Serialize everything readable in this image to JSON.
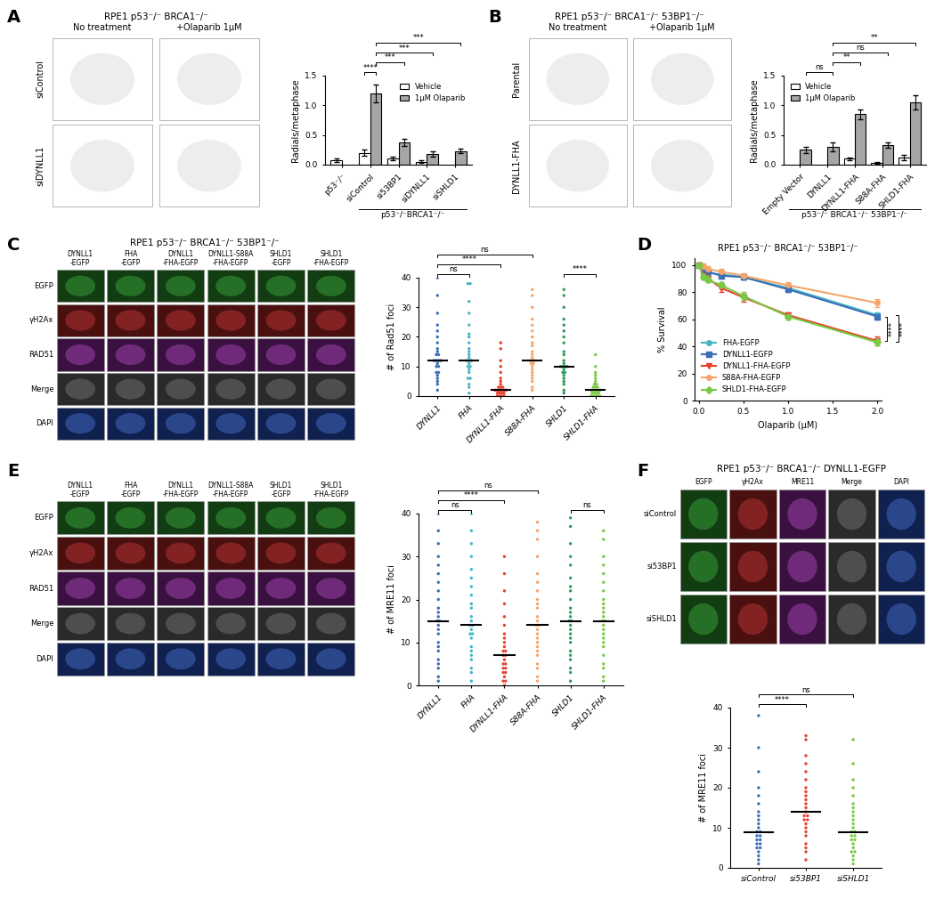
{
  "panel_labels": [
    "A",
    "B",
    "C",
    "D",
    "E",
    "F"
  ],
  "image_panels": [
    {
      "title": "RPE1 p53⁻/⁻ BRCA1⁻/⁻",
      "columns": [
        "No treatment",
        "+Olaparib 1μM"
      ],
      "rows": [
        "siControl",
        "siDYNLL1"
      ]
    },
    {
      "title": "RPE1 p53⁻/⁻ BRCA1⁻/⁻ 53BP1⁻/⁻",
      "columns": [
        "No treatment",
        "+Olaparib 1μM"
      ],
      "rows": [
        "Parental",
        "DYNLL1-FHA"
      ]
    },
    {
      "title": "RPE1 p53⁻/⁻ BRCA1⁻/⁻ 53BP1⁻/⁻",
      "columns": [
        "DYNLL1\n-EGFP",
        "FHA\n-EGFP",
        "DYNLL1\n-FHA-EGFP",
        "DYNLL1-S88A\n-FHA-EGFP",
        "SHLD1\n-EGFP",
        "SHLD1\n-FHA-EGFP"
      ],
      "rows": [
        "EGFP",
        "γH2Ax",
        "RAD51",
        "Merge",
        "DAPI"
      ]
    },
    {
      "columns": [
        "DYNLL1\n-EGFP",
        "FHA\n-EGFP",
        "DYNLL1\n-FHA-EGFP",
        "DYNLL1-S88A\n-FHA-EGFP",
        "SHLD1\n-EGFP",
        "SHLD1\n-FHA-EGFP"
      ],
      "rows": [
        "EGFP",
        "γH2Ax",
        "RAD51",
        "Merge",
        "DAPI"
      ]
    },
    {
      "title": "RPE1 p53⁻/⁻ BRCA1⁻/⁻ DYNLL1-EGFP",
      "columns": [
        "EGFP",
        "γH2Ax",
        "MRE11",
        "Merge",
        "DAPI"
      ],
      "rows": [
        "siControl",
        "si53BP1",
        "siSHLD1"
      ]
    }
  ],
  "chart_data": [
    {
      "type": "bar",
      "ylabel": "Radials/metaphase",
      "categories": [
        "p53⁻/⁻",
        "siControl",
        "si53BP1",
        "siDYNLL1",
        "siSHLD1"
      ],
      "group_label": "p53⁻/⁻BRCA1⁻/⁻",
      "group_categories": [
        "siControl",
        "si53BP1",
        "siDYNLL1",
        "siSHLD1"
      ],
      "series": [
        {
          "name": "Vehicle",
          "color": "#ffffff",
          "values": [
            0.07,
            0.2,
            0.1,
            0.05,
            null
          ],
          "errors": [
            0.03,
            0.05,
            0.03,
            0.02,
            null
          ]
        },
        {
          "name": "1μM Olaparib",
          "color": "#a6a6a6",
          "values": [
            null,
            1.2,
            0.38,
            0.18,
            0.23
          ],
          "errors": [
            null,
            0.15,
            0.06,
            0.05,
            0.04
          ]
        }
      ],
      "ylim": [
        0,
        1.5
      ],
      "yticks": [
        {
          "value": 0,
          "label": "0.0"
        },
        {
          "value": 0.5,
          "label": "0.5"
        },
        {
          "value": 1.0,
          "label": "1.0"
        },
        {
          "value": 1.5,
          "label": "1.5"
        }
      ],
      "legend": "upper right",
      "comparisons": [
        {
          "a": [
            "siControl",
            "Vehicle"
          ],
          "b": [
            "siControl",
            "1μM Olaparib"
          ],
          "label": "****"
        },
        {
          "a": [
            "siControl",
            "1μM Olaparib"
          ],
          "b": [
            "si53BP1",
            "1μM Olaparib"
          ],
          "label": "***"
        },
        {
          "a": [
            "siControl",
            "1μM Olaparib"
          ],
          "b": [
            "siDYNLL1",
            "1μM Olaparib"
          ],
          "label": "***"
        },
        {
          "a": [
            "siControl",
            "1μM Olaparib"
          ],
          "b": [
            "siSHLD1",
            "1μM Olaparib"
          ],
          "label": "***"
        }
      ]
    },
    {
      "type": "bar",
      "ylabel": "Radials/metaphase",
      "categories": [
        "Empty Vector",
        "DYNLL1",
        "DYNLL1-FHA",
        "S88A-FHA",
        "SHLD1-FHA"
      ],
      "group_label": "p53⁻/⁻ BRCA1⁻/⁻ 53BP1⁻/⁻",
      "group_categories": [
        "Empty Vector",
        "DYNLL1",
        "DYNLL1-FHA",
        "S88A-FHA",
        "SHLD1-FHA"
      ],
      "series": [
        {
          "name": "Vehicle",
          "color": "#ffffff",
          "values": [
            null,
            null,
            0.1,
            0.03,
            0.12
          ],
          "errors": [
            null,
            null,
            0.02,
            0.02,
            0.04
          ]
        },
        {
          "name": "1μM Olaparib",
          "color": "#a6a6a6",
          "values": [
            0.25,
            0.3,
            0.85,
            0.33,
            1.05
          ],
          "errors": [
            0.05,
            0.07,
            0.08,
            0.05,
            0.12
          ]
        }
      ],
      "ylim": [
        0,
        1.5
      ],
      "yticks": [
        {
          "value": 0,
          "label": "0.0"
        },
        {
          "value": 0.5,
          "label": "0.5"
        },
        {
          "value": 1.0,
          "label": "1.0"
        },
        {
          "value": 1.5,
          "label": "1.5"
        }
      ],
      "legend": "upper left",
      "comparisons": [
        {
          "a": [
            "Empty Vector",
            "1μM Olaparib"
          ],
          "b": [
            "DYNLL1",
            "1μM Olaparib"
          ],
          "label": "ns"
        },
        {
          "a": [
            "DYNLL1",
            "1μM Olaparib"
          ],
          "b": [
            "DYNLL1-FHA",
            "1μM Olaparib"
          ],
          "label": "**"
        },
        {
          "a": [
            "DYNLL1",
            "1μM Olaparib"
          ],
          "b": [
            "S88A-FHA",
            "1μM Olaparib"
          ],
          "label": "ns"
        },
        {
          "a": [
            "DYNLL1",
            "1μM Olaparib"
          ],
          "b": [
            "SHLD1-FHA",
            "1μM Olaparib"
          ],
          "label": "**"
        }
      ]
    },
    {
      "type": "scatter",
      "ylabel": "# of Rad51 foci",
      "categories": [
        "DYNLL1",
        "FHA",
        "DYNLL1-FHA",
        "S88A-FHA",
        "SHLD1",
        "SHLD1-FHA"
      ],
      "colors": [
        "#3b6fb6",
        "#45b5c4",
        "#e8402e",
        "#f5a46a",
        "#2e9c5a",
        "#7ac943"
      ],
      "values": [
        [
          2,
          4,
          5,
          6,
          7,
          8,
          8,
          10,
          10,
          11,
          12,
          12,
          12,
          12,
          14,
          14,
          15,
          16,
          18,
          20,
          22,
          24,
          28,
          34,
          40
        ],
        [
          1,
          3,
          4,
          6,
          6,
          8,
          9,
          10,
          10,
          11,
          12,
          12,
          12,
          13,
          14,
          15,
          16,
          18,
          20,
          21,
          24,
          28,
          32,
          38,
          38
        ],
        [
          0,
          0,
          0,
          0,
          1,
          1,
          1,
          1,
          2,
          2,
          2,
          2,
          2,
          2,
          3,
          3,
          3,
          4,
          5,
          6,
          8,
          10,
          12,
          16,
          18
        ],
        [
          2,
          3,
          5,
          6,
          7,
          8,
          9,
          10,
          11,
          11,
          12,
          12,
          12,
          13,
          14,
          15,
          17,
          18,
          20,
          22,
          24,
          26,
          30,
          34,
          36
        ],
        [
          1,
          2,
          4,
          5,
          6,
          7,
          8,
          8,
          9,
          10,
          10,
          10,
          10,
          11,
          12,
          14,
          15,
          18,
          20,
          22,
          24,
          26,
          30,
          34,
          36
        ],
        [
          0,
          0,
          0,
          0,
          0,
          1,
          1,
          1,
          1,
          2,
          2,
          2,
          2,
          2,
          3,
          3,
          3,
          4,
          4,
          5,
          6,
          7,
          8,
          10,
          14
        ]
      ],
      "medians": [
        12,
        12,
        2,
        12,
        10,
        2
      ],
      "ylim": [
        0,
        40
      ],
      "yticks": [
        0,
        10,
        20,
        30,
        40
      ],
      "comparisons": [
        {
          "a": "DYNLL1",
          "b": "FHA",
          "label": "ns"
        },
        {
          "a": "DYNLL1",
          "b": "DYNLL1-FHA",
          "label": "****"
        },
        {
          "a": "DYNLL1",
          "b": "S88A-FHA",
          "label": "ns"
        },
        {
          "a": "SHLD1",
          "b": "SHLD1-FHA",
          "label": "****"
        }
      ]
    },
    {
      "type": "line",
      "title": "RPE1 p53⁻/⁻ BRCA1⁻/⁻ 53BP1⁻/⁻",
      "xlabel": "Olaparib (μM)",
      "ylabel": "% Survival",
      "x": [
        0,
        0.05,
        0.1,
        0.25,
        0.5,
        1.0,
        2.0
      ],
      "series": [
        {
          "name": "FHA-EGFP",
          "color": "#45b5c4",
          "marker": "circle",
          "values": [
            100,
            96,
            94,
            93,
            91,
            83,
            63
          ],
          "errors": [
            1,
            2,
            2,
            2,
            2,
            2,
            2
          ]
        },
        {
          "name": "DYNLL1-EGFP",
          "color": "#3b6fb6",
          "marker": "square",
          "values": [
            100,
            96,
            95,
            92,
            91,
            82,
            62
          ],
          "errors": [
            1,
            2,
            2,
            2,
            2,
            2,
            2
          ]
        },
        {
          "name": "DYNLL1-FHA-EGFP",
          "color": "#e8402e",
          "marker": "triangle_down",
          "values": [
            100,
            92,
            90,
            83,
            76,
            63,
            44
          ],
          "errors": [
            1,
            2,
            2,
            3,
            3,
            2,
            3
          ]
        },
        {
          "name": "S88A-FHA-EGFP",
          "color": "#f5a46a",
          "marker": "circle",
          "values": [
            100,
            99,
            97,
            95,
            92,
            85,
            72
          ],
          "errors": [
            1,
            2,
            2,
            2,
            2,
            2,
            3
          ]
        },
        {
          "name": "SHLD1-FHA-EGFP",
          "color": "#7ac943",
          "marker": "diamond",
          "values": [
            100,
            91,
            89,
            85,
            77,
            62,
            43
          ],
          "errors": [
            1,
            2,
            2,
            2,
            3,
            2,
            2
          ]
        }
      ],
      "xlim": [
        -0.05,
        2.05
      ],
      "xticks": [
        {
          "value": 0,
          "label": "0.0"
        },
        {
          "value": 0.5,
          "label": "0.5"
        },
        {
          "value": 1.0,
          "label": "1.0"
        },
        {
          "value": 1.5,
          "label": "1.5"
        },
        {
          "value": 2.0,
          "label": "2.0"
        }
      ],
      "ylim": [
        0,
        105
      ],
      "yticks": [
        0,
        20,
        40,
        60,
        80,
        100
      ],
      "legend": "lower left",
      "comparisons": [
        {
          "a": "DYNLL1-FHA-EGFP",
          "b": "DYNLL1-EGFP",
          "label": "****"
        },
        {
          "a": "SHLD1-FHA-EGFP",
          "b": "FHA-EGFP",
          "label": "****"
        }
      ]
    },
    {
      "type": "scatter",
      "ylabel": "# of MRE11 foci",
      "categories": [
        "DYNLL1",
        "FHA",
        "DYNLL1-FHA",
        "S88A-FHA",
        "SHLD1",
        "SHLD1-FHA"
      ],
      "colors": [
        "#3b6fb6",
        "#45b5c4",
        "#e8402e",
        "#f5a46a",
        "#2e9c5a",
        "#7ac943"
      ],
      "values": [
        [
          1,
          2,
          4,
          5,
          6,
          8,
          9,
          10,
          12,
          13,
          14,
          15,
          15,
          16,
          17,
          18,
          20,
          22,
          24,
          26,
          28,
          30,
          33,
          36,
          40
        ],
        [
          1,
          3,
          4,
          6,
          7,
          8,
          9,
          11,
          12,
          12,
          13,
          14,
          14,
          15,
          16,
          18,
          19,
          21,
          23,
          25,
          27,
          30,
          33,
          36,
          40
        ],
        [
          0,
          1,
          1,
          2,
          3,
          3,
          4,
          4,
          5,
          5,
          6,
          7,
          7,
          8,
          8,
          9,
          10,
          11,
          12,
          14,
          16,
          19,
          22,
          26,
          30
        ],
        [
          1,
          2,
          4,
          5,
          7,
          8,
          9,
          10,
          11,
          12,
          13,
          14,
          14,
          15,
          16,
          18,
          19,
          20,
          22,
          24,
          26,
          30,
          34,
          36,
          38
        ],
        [
          1,
          3,
          4,
          6,
          7,
          8,
          10,
          11,
          12,
          13,
          14,
          15,
          15,
          16,
          17,
          18,
          20,
          22,
          23,
          25,
          28,
          30,
          33,
          37,
          39
        ],
        [
          1,
          2,
          4,
          5,
          7,
          9,
          10,
          11,
          12,
          13,
          14,
          15,
          15,
          16,
          17,
          18,
          19,
          20,
          22,
          24,
          26,
          28,
          30,
          34,
          36
        ]
      ],
      "medians": [
        15,
        14,
        7,
        14,
        15,
        15
      ],
      "ylim": [
        0,
        40
      ],
      "yticks": [
        0,
        10,
        20,
        30,
        40
      ],
      "comparisons": [
        {
          "a": "DYNLL1",
          "b": "FHA",
          "label": "ns"
        },
        {
          "a": "DYNLL1",
          "b": "DYNLL1-FHA",
          "label": "****"
        },
        {
          "a": "DYNLL1",
          "b": "S88A-FHA",
          "label": "ns"
        },
        {
          "a": "SHLD1",
          "b": "SHLD1-FHA",
          "label": "ns"
        }
      ]
    },
    {
      "type": "scatter",
      "ylabel": "# of MRE11 foci",
      "categories": [
        "siControl",
        "si53BP1",
        "siSHLD1"
      ],
      "colors": [
        "#3b6fb6",
        "#e8402e",
        "#7ac943"
      ],
      "values": [
        [
          1,
          2,
          3,
          4,
          5,
          5,
          6,
          6,
          7,
          7,
          8,
          8,
          9,
          9,
          10,
          11,
          12,
          13,
          14,
          16,
          18,
          20,
          24,
          30,
          38
        ],
        [
          2,
          4,
          5,
          6,
          8,
          9,
          10,
          11,
          12,
          12,
          13,
          13,
          14,
          15,
          16,
          17,
          18,
          19,
          20,
          22,
          24,
          26,
          28,
          32,
          33
        ],
        [
          1,
          2,
          3,
          4,
          4,
          5,
          6,
          7,
          7,
          8,
          8,
          9,
          9,
          10,
          11,
          12,
          13,
          14,
          15,
          16,
          18,
          20,
          22,
          26,
          32
        ]
      ],
      "medians": [
        9,
        14,
        9
      ],
      "ylim": [
        0,
        40
      ],
      "yticks": [
        0,
        10,
        20,
        30,
        40
      ],
      "comparisons": [
        {
          "a": "siControl",
          "b": "si53BP1",
          "label": "****"
        },
        {
          "a": "siControl",
          "b": "siSHLD1",
          "label": "ns"
        }
      ]
    }
  ]
}
